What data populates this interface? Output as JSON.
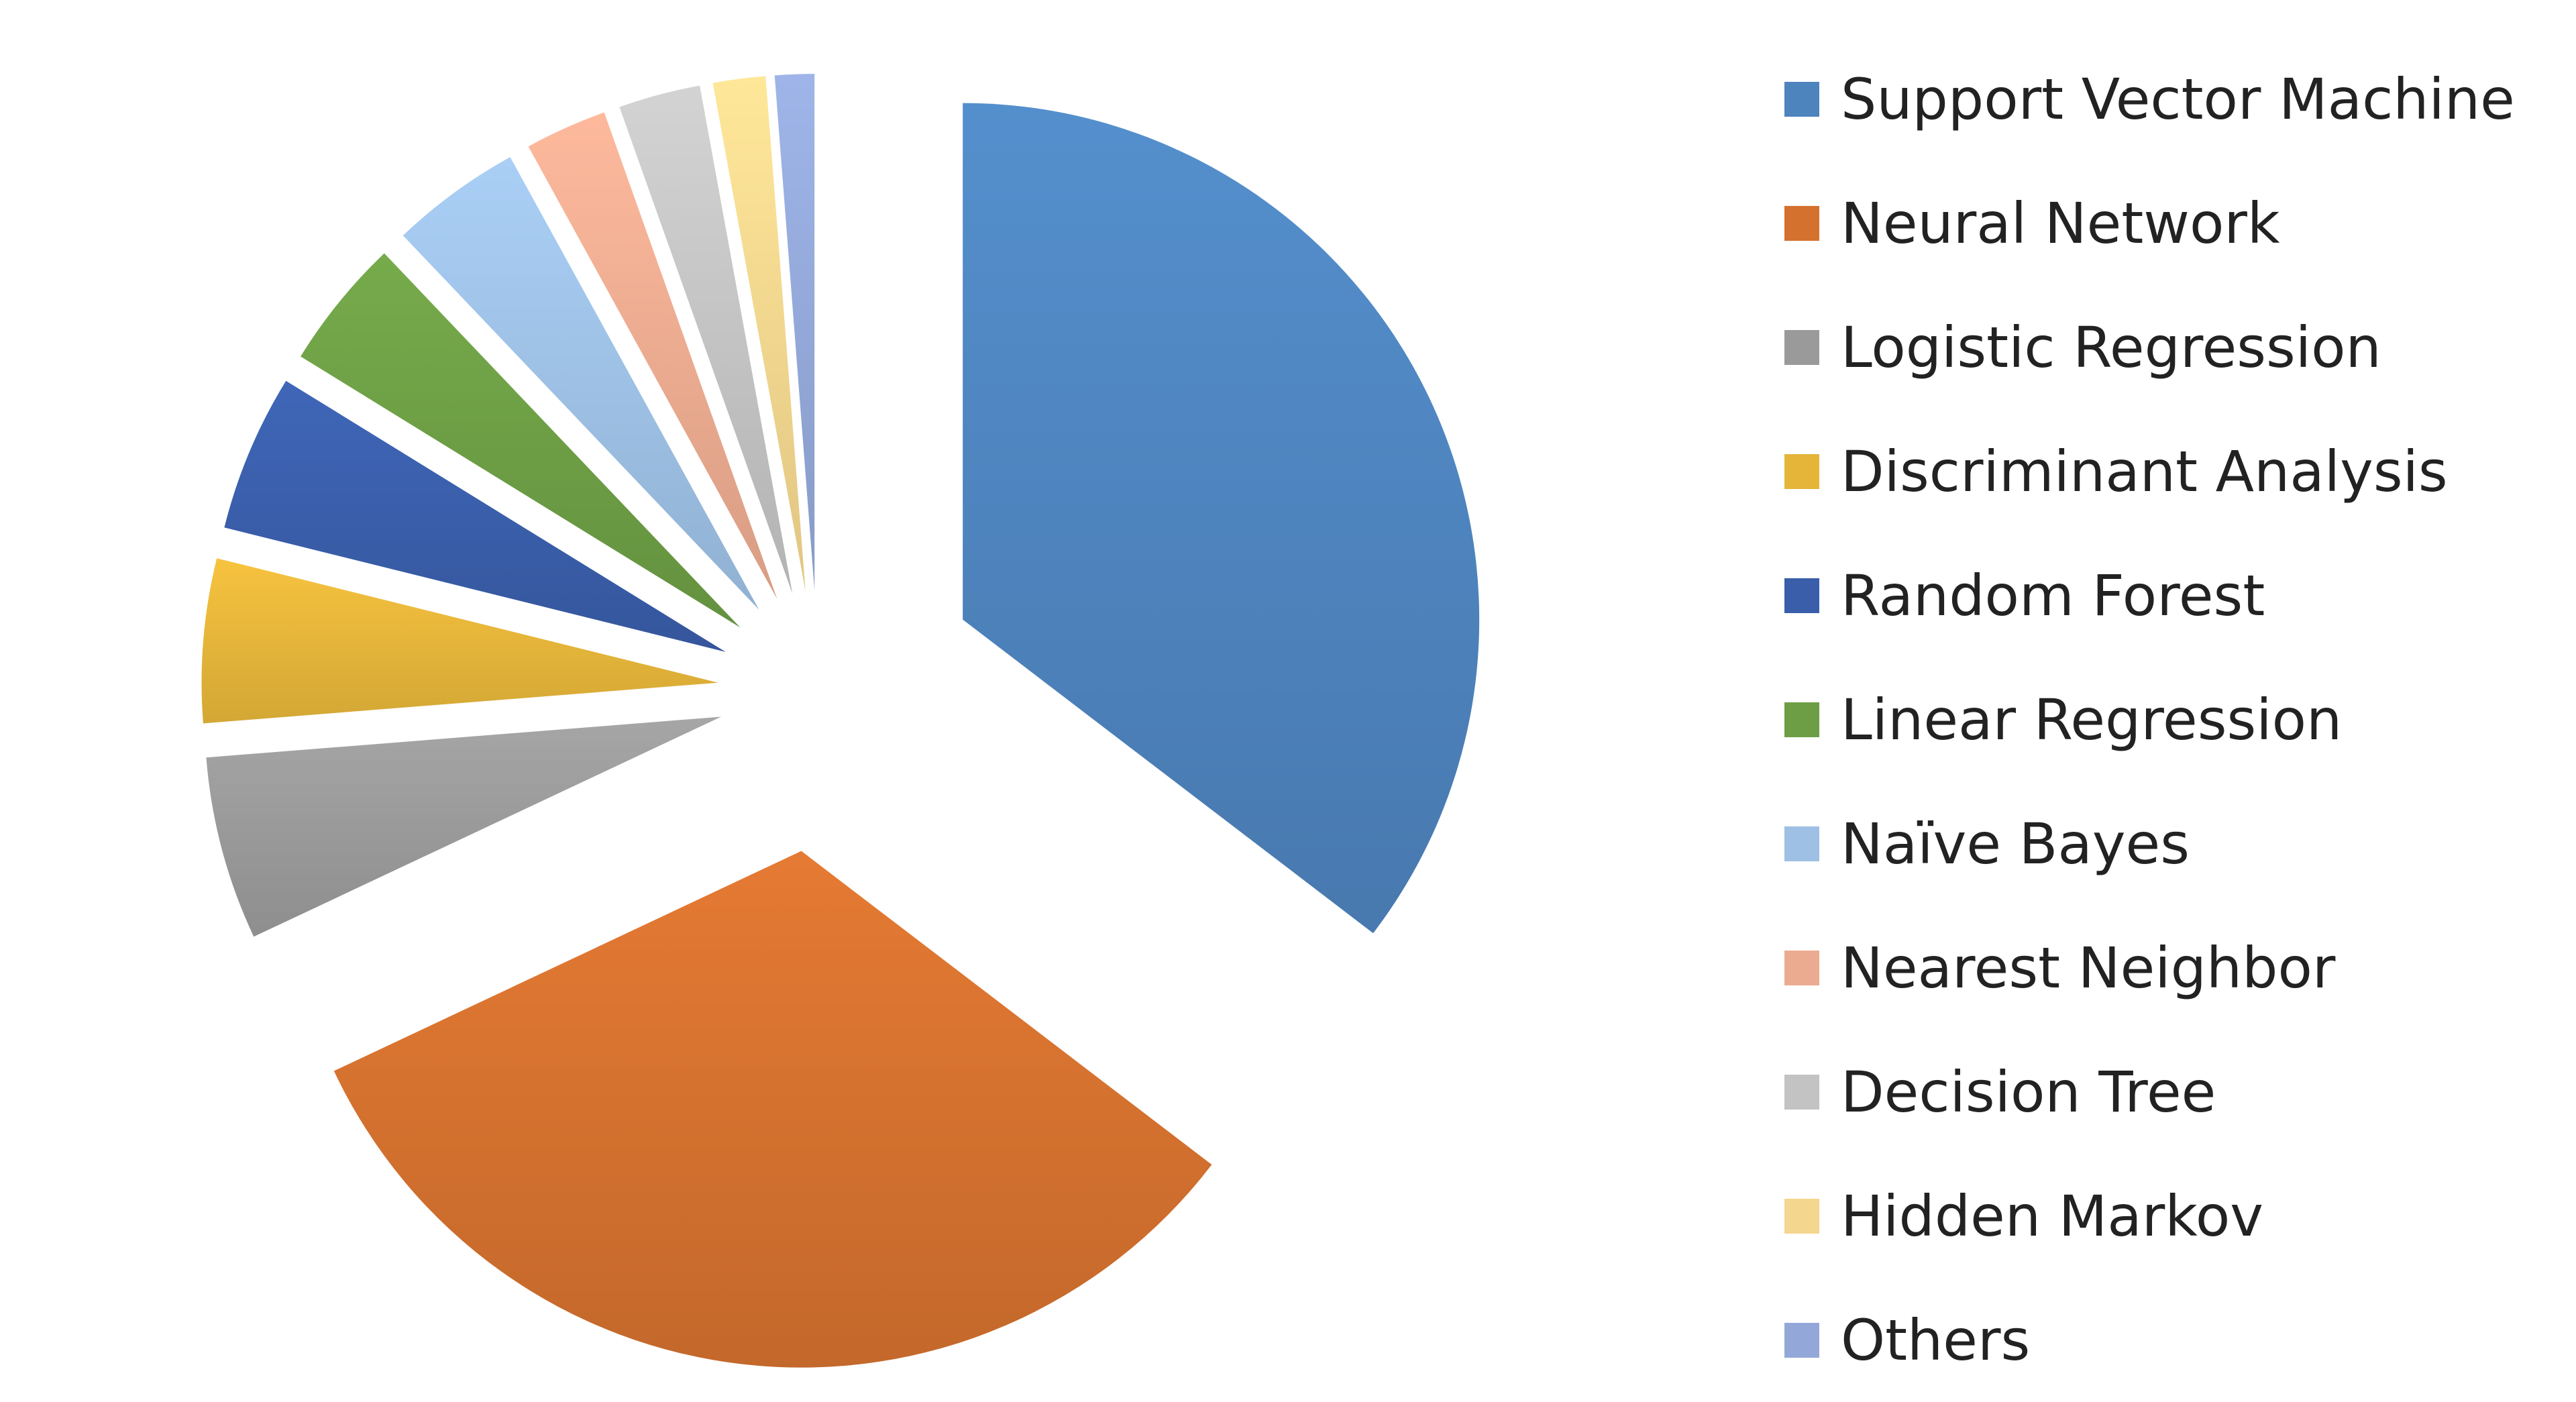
{
  "chart_data": {
    "type": "pie",
    "title": "",
    "labels": [
      "Support Vector Machine",
      "Neural Network",
      "Logistic Regression",
      "Discriminant Analysis",
      "Random Forest",
      "Linear Regression",
      "Naïve Bayes",
      "Nearest Neighbor",
      "Decision Tree",
      "Hidden Markov",
      "Others"
    ],
    "values": [
      34.5,
      31.8,
      5.6,
      5.0,
      4.8,
      4.0,
      4.0,
      2.5,
      2.5,
      1.6,
      1.2
    ],
    "colors": [
      "#4E84BE",
      "#D4712F",
      "#9A9A9A",
      "#E5B53A",
      "#3A5EAA",
      "#6D9E45",
      "#9DC0E4",
      "#EBAB90",
      "#C3C3C3",
      "#F5D68E",
      "#93A8D8"
    ],
    "exploded": true,
    "legend_position": "right"
  }
}
